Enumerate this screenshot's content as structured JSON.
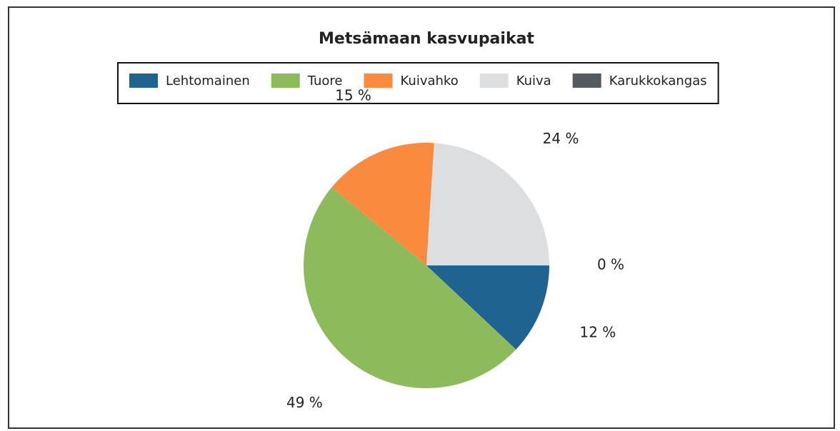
{
  "chart_data": {
    "type": "pie",
    "title": "Metsämaan kasvupaikat",
    "categories": [
      "Lehtomainen",
      "Tuore",
      "Kuivahko",
      "Kuiva",
      "Karukkokangas"
    ],
    "values": [
      12,
      49,
      15,
      24,
      0
    ],
    "value_labels": [
      "12 %",
      "49 %",
      "15 %",
      "24 %",
      "0 %"
    ],
    "colors": [
      "#1f6391",
      "#8dbb5c",
      "#f98a3e",
      "#dcdee0",
      "#555a5e"
    ],
    "legend": "top"
  }
}
